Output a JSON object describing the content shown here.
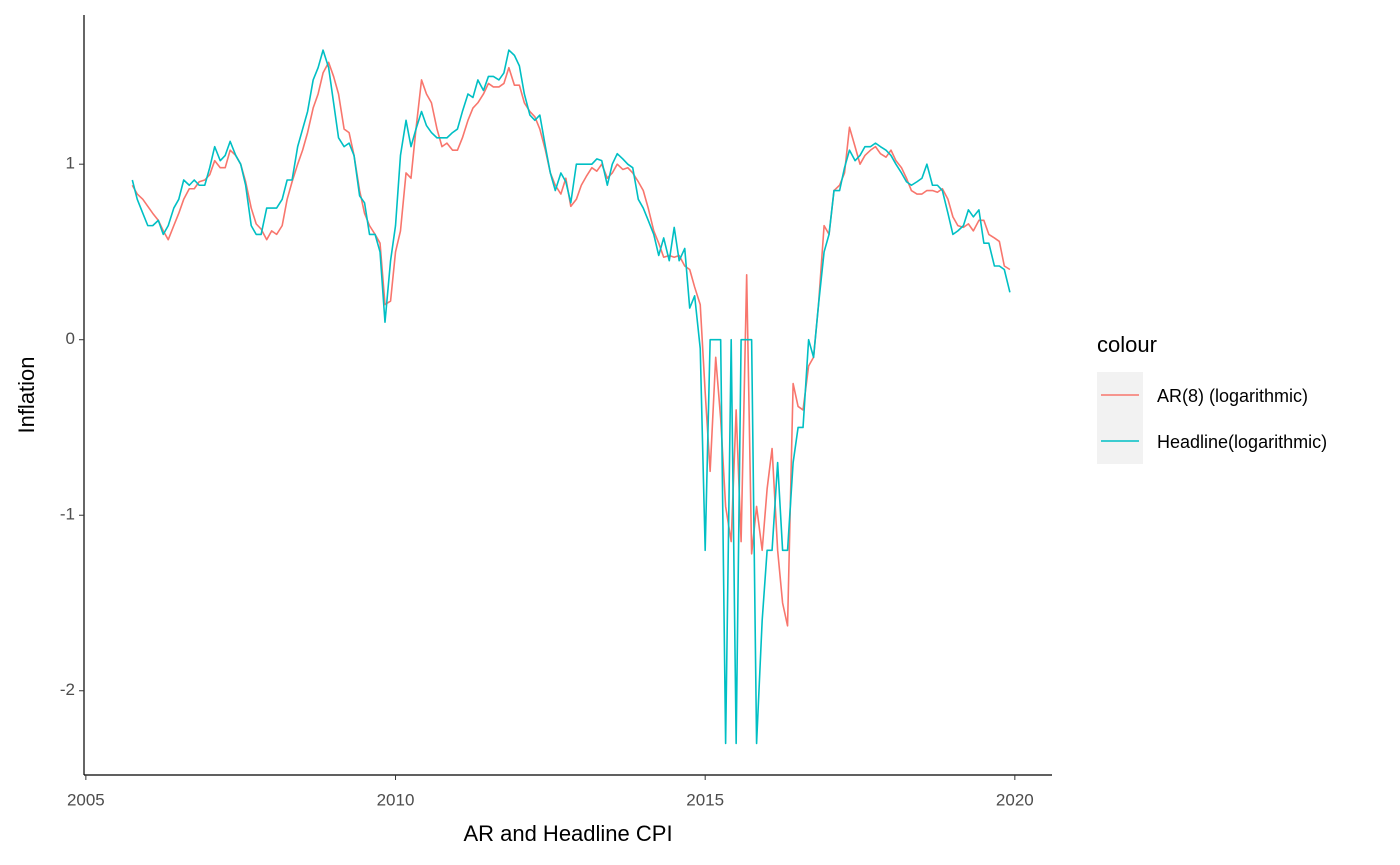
{
  "chart_data": {
    "type": "line",
    "x_label": "AR and Headline CPI",
    "y_label": "Inflation",
    "legend_title": "colour",
    "legend": "right",
    "grid": false,
    "xlim": [
      2004.97,
      2020.6
    ],
    "ylim": [
      -2.48,
      1.85
    ],
    "xticks": [
      2005,
      2010,
      2015,
      2020
    ],
    "yticks": [
      -2,
      -1,
      0,
      1
    ],
    "x": [
      2005.75,
      2005.83,
      2005.92,
      2006,
      2006.08,
      2006.17,
      2006.25,
      2006.33,
      2006.42,
      2006.5,
      2006.58,
      2006.67,
      2006.75,
      2006.83,
      2006.92,
      2007,
      2007.08,
      2007.17,
      2007.25,
      2007.33,
      2007.42,
      2007.5,
      2007.58,
      2007.67,
      2007.75,
      2007.83,
      2007.92,
      2008,
      2008.08,
      2008.17,
      2008.25,
      2008.33,
      2008.42,
      2008.5,
      2008.58,
      2008.67,
      2008.75,
      2008.83,
      2008.92,
      2009,
      2009.08,
      2009.17,
      2009.25,
      2009.33,
      2009.42,
      2009.5,
      2009.58,
      2009.67,
      2009.75,
      2009.83,
      2009.92,
      2010,
      2010.08,
      2010.17,
      2010.25,
      2010.33,
      2010.42,
      2010.5,
      2010.58,
      2010.67,
      2010.75,
      2010.83,
      2010.92,
      2011,
      2011.08,
      2011.17,
      2011.25,
      2011.33,
      2011.42,
      2011.5,
      2011.58,
      2011.67,
      2011.75,
      2011.83,
      2011.92,
      2012,
      2012.08,
      2012.17,
      2012.25,
      2012.33,
      2012.42,
      2012.5,
      2012.58,
      2012.67,
      2012.75,
      2012.83,
      2012.92,
      2013,
      2013.08,
      2013.17,
      2013.25,
      2013.33,
      2013.42,
      2013.5,
      2013.58,
      2013.67,
      2013.75,
      2013.83,
      2013.92,
      2014,
      2014.08,
      2014.17,
      2014.25,
      2014.33,
      2014.42,
      2014.5,
      2014.58,
      2014.67,
      2014.75,
      2014.83,
      2014.92,
      2015,
      2015.08,
      2015.17,
      2015.25,
      2015.33,
      2015.42,
      2015.5,
      2015.58,
      2015.67,
      2015.75,
      2015.83,
      2015.92,
      2016,
      2016.08,
      2016.17,
      2016.25,
      2016.33,
      2016.42,
      2016.5,
      2016.58,
      2016.67,
      2016.75,
      2016.83,
      2016.92,
      2017,
      2017.08,
      2017.17,
      2017.25,
      2017.33,
      2017.42,
      2017.5,
      2017.58,
      2017.67,
      2017.75,
      2017.83,
      2017.92,
      2018,
      2018.08,
      2018.17,
      2018.25,
      2018.33,
      2018.42,
      2018.5,
      2018.58,
      2018.67,
      2018.75,
      2018.83,
      2018.92,
      2019,
      2019.08,
      2019.17,
      2019.25,
      2019.33,
      2019.42,
      2019.5,
      2019.58,
      2019.67,
      2019.75,
      2019.83,
      2019.92
    ],
    "series": [
      {
        "name": "AR(8) (logarithmic)",
        "color": "#F8766D",
        "values": [
          0.88,
          0.83,
          0.8,
          0.76,
          0.72,
          0.68,
          0.62,
          0.57,
          0.65,
          0.72,
          0.8,
          0.86,
          0.86,
          0.9,
          0.91,
          0.94,
          1.02,
          0.98,
          0.98,
          1.08,
          1.05,
          1.0,
          0.9,
          0.75,
          0.66,
          0.63,
          0.57,
          0.62,
          0.6,
          0.65,
          0.8,
          0.9,
          1.0,
          1.08,
          1.18,
          1.32,
          1.4,
          1.52,
          1.58,
          1.5,
          1.4,
          1.2,
          1.18,
          1.05,
          0.85,
          0.72,
          0.65,
          0.6,
          0.55,
          0.2,
          0.22,
          0.5,
          0.62,
          0.95,
          0.92,
          1.2,
          1.48,
          1.4,
          1.35,
          1.2,
          1.1,
          1.12,
          1.08,
          1.08,
          1.15,
          1.25,
          1.32,
          1.35,
          1.4,
          1.46,
          1.44,
          1.44,
          1.46,
          1.55,
          1.45,
          1.45,
          1.35,
          1.3,
          1.27,
          1.2,
          1.08,
          0.95,
          0.88,
          0.83,
          0.92,
          0.76,
          0.8,
          0.88,
          0.93,
          0.98,
          0.96,
          1.0,
          0.92,
          0.95,
          1.0,
          0.97,
          0.98,
          0.95,
          0.9,
          0.85,
          0.75,
          0.62,
          0.55,
          0.47,
          0.48,
          0.47,
          0.48,
          0.42,
          0.4,
          0.3,
          0.2,
          -0.3,
          -0.75,
          -0.1,
          -0.45,
          -0.95,
          -1.15,
          -0.4,
          -1.15,
          0.37,
          -1.22,
          -0.95,
          -1.2,
          -0.85,
          -0.62,
          -1.2,
          -1.5,
          -1.63,
          -0.25,
          -0.38,
          -0.4,
          -0.15,
          -0.1,
          0.2,
          0.65,
          0.6,
          0.85,
          0.88,
          0.95,
          1.21,
          1.1,
          1.0,
          1.05,
          1.08,
          1.1,
          1.06,
          1.04,
          1.08,
          1.02,
          0.98,
          0.92,
          0.85,
          0.83,
          0.83,
          0.85,
          0.85,
          0.84,
          0.86,
          0.8,
          0.7,
          0.65,
          0.64,
          0.66,
          0.62,
          0.68,
          0.68,
          0.6,
          0.58,
          0.56,
          0.42,
          0.4
        ]
      },
      {
        "name": "Headline(logarithmic)",
        "color": "#00BFC4",
        "values": [
          0.91,
          0.8,
          0.72,
          0.65,
          0.65,
          0.68,
          0.6,
          0.65,
          0.75,
          0.8,
          0.91,
          0.88,
          0.91,
          0.88,
          0.88,
          0.98,
          1.1,
          1.02,
          1.05,
          1.13,
          1.05,
          1.0,
          0.88,
          0.65,
          0.6,
          0.6,
          0.75,
          0.75,
          0.75,
          0.8,
          0.91,
          0.91,
          1.1,
          1.2,
          1.3,
          1.48,
          1.55,
          1.65,
          1.55,
          1.35,
          1.15,
          1.1,
          1.12,
          1.05,
          0.82,
          0.78,
          0.6,
          0.6,
          0.5,
          0.1,
          0.45,
          0.65,
          1.05,
          1.25,
          1.1,
          1.2,
          1.3,
          1.22,
          1.18,
          1.15,
          1.15,
          1.15,
          1.18,
          1.2,
          1.3,
          1.4,
          1.38,
          1.48,
          1.42,
          1.5,
          1.5,
          1.48,
          1.52,
          1.65,
          1.62,
          1.56,
          1.4,
          1.28,
          1.25,
          1.28,
          1.1,
          0.95,
          0.85,
          0.95,
          0.9,
          0.78,
          1.0,
          1.0,
          1.0,
          1.0,
          1.03,
          1.02,
          0.88,
          1.0,
          1.06,
          1.03,
          1.0,
          0.98,
          0.8,
          0.75,
          0.68,
          0.6,
          0.48,
          0.58,
          0.45,
          0.64,
          0.45,
          0.52,
          0.18,
          0.25,
          -0.05,
          -1.2,
          0,
          0,
          0,
          -2.3,
          0,
          -2.3,
          0,
          0,
          0,
          -2.3,
          -1.6,
          -1.2,
          -1.2,
          -0.7,
          -1.2,
          -1.2,
          -0.7,
          -0.5,
          -0.5,
          0,
          -0.1,
          0.2,
          0.5,
          0.6,
          0.85,
          0.85,
          0.98,
          1.08,
          1.02,
          1.05,
          1.1,
          1.1,
          1.12,
          1.1,
          1.08,
          1.05,
          1.0,
          0.95,
          0.9,
          0.88,
          0.9,
          0.92,
          1.0,
          0.88,
          0.88,
          0.85,
          0.72,
          0.6,
          0.62,
          0.65,
          0.74,
          0.7,
          0.74,
          0.55,
          0.55,
          0.42,
          0.42,
          0.4,
          0.27
        ]
      }
    ]
  }
}
